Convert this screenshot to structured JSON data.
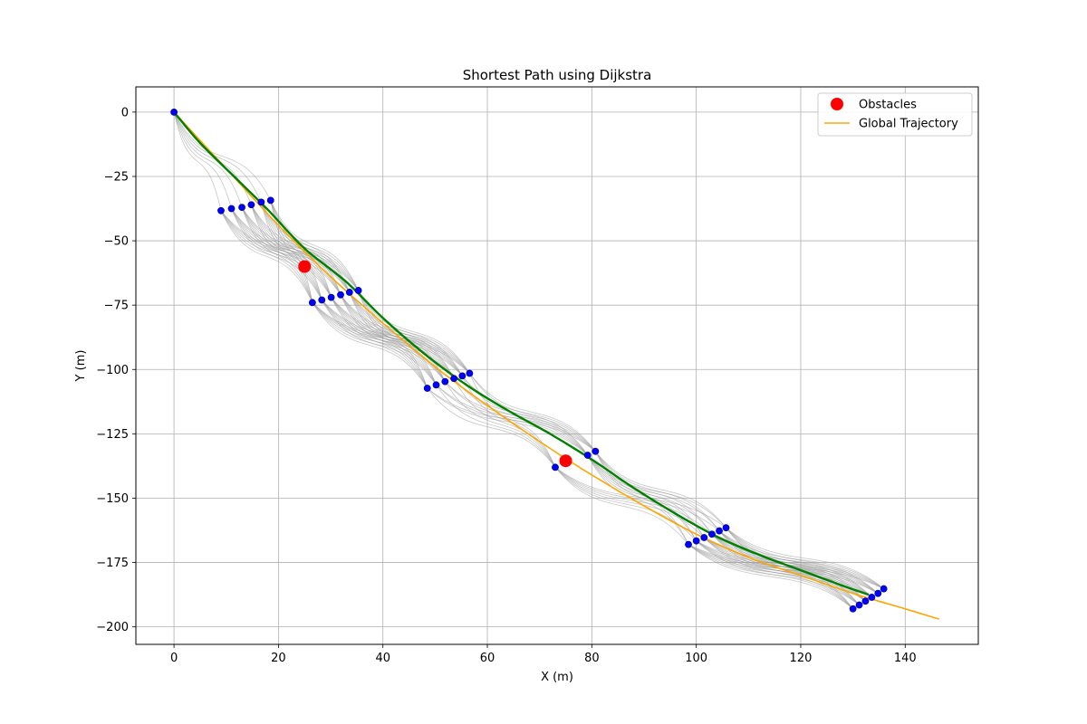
{
  "chart_data": {
    "type": "line",
    "title": "Shortest Path using Dijkstra",
    "xlabel": "X (m)",
    "ylabel": "Y (m)",
    "xlim": [
      -7.3,
      154
    ],
    "ylim": [
      -206.8,
      9.8
    ],
    "xticks": [
      0,
      20,
      40,
      60,
      80,
      100,
      120,
      140
    ],
    "yticks": [
      0,
      -25,
      -50,
      -75,
      -100,
      -125,
      -150,
      -175,
      -200
    ],
    "grid": true,
    "legend": {
      "position": "top-right",
      "entries": [
        {
          "label": "Obstacles",
          "marker": "circle",
          "color": "#ff0000"
        },
        {
          "label": "Global Trajectory",
          "marker": "line",
          "color": "#ffa500"
        }
      ]
    },
    "obstacles": {
      "name": "Obstacles",
      "color": "#ff0000",
      "points": [
        [
          25,
          -60
        ],
        [
          75,
          -135.5
        ]
      ]
    },
    "global_trajectory": {
      "name": "Global Trajectory",
      "color": "#ffa500",
      "points": [
        [
          0,
          0
        ],
        [
          10,
          -22
        ],
        [
          20,
          -44
        ],
        [
          30,
          -64
        ],
        [
          40,
          -82
        ],
        [
          50,
          -99
        ],
        [
          60,
          -114
        ],
        [
          70,
          -128
        ],
        [
          80,
          -141
        ],
        [
          90,
          -153
        ],
        [
          100,
          -164
        ],
        [
          110,
          -173
        ],
        [
          120,
          -180
        ],
        [
          130,
          -187
        ],
        [
          140,
          -193
        ],
        [
          146.5,
          -197
        ]
      ]
    },
    "shortest_path": {
      "color": "#008000",
      "points": [
        [
          0,
          0
        ],
        [
          5,
          -12
        ],
        [
          12,
          -26
        ],
        [
          18,
          -38
        ],
        [
          25,
          -53
        ],
        [
          33,
          -66
        ],
        [
          40,
          -80
        ],
        [
          48,
          -94
        ],
        [
          56,
          -106
        ],
        [
          64,
          -116
        ],
        [
          72,
          -125
        ],
        [
          80,
          -135
        ],
        [
          88,
          -146
        ],
        [
          96,
          -156
        ],
        [
          104,
          -165
        ],
        [
          112,
          -172
        ],
        [
          120,
          -178
        ],
        [
          128,
          -184
        ],
        [
          133,
          -187.5
        ]
      ]
    },
    "waypoints": {
      "color": "#0000ff",
      "layers": [
        [
          [
            0,
            0
          ]
        ],
        [
          [
            9,
            -38.3
          ],
          [
            11,
            -37.5
          ],
          [
            13,
            -37
          ],
          [
            14.8,
            -36
          ],
          [
            16.7,
            -35
          ],
          [
            18.5,
            -34.3
          ]
        ],
        [
          [
            26.5,
            -74
          ],
          [
            28.3,
            -73
          ],
          [
            30.1,
            -72
          ],
          [
            31.9,
            -71
          ],
          [
            33.6,
            -70
          ],
          [
            35.3,
            -69.3
          ]
        ],
        [
          [
            48.5,
            -107.3
          ],
          [
            50.2,
            -106
          ],
          [
            51.9,
            -104.7
          ],
          [
            53.6,
            -103.5
          ],
          [
            55.2,
            -102.5
          ],
          [
            56.6,
            -101.5
          ]
        ],
        [
          [
            73,
            -138
          ],
          [
            79.2,
            -133.3
          ],
          [
            80.7,
            -131.8
          ]
        ],
        [
          [
            98.5,
            -168
          ],
          [
            100,
            -166.6
          ],
          [
            101.5,
            -165.3
          ],
          [
            103,
            -164
          ],
          [
            104.4,
            -162.7
          ],
          [
            105.7,
            -161.5
          ]
        ],
        [
          [
            130,
            -193
          ],
          [
            131.2,
            -191.5
          ],
          [
            132.4,
            -190
          ],
          [
            133.6,
            -188.5
          ],
          [
            134.8,
            -187
          ],
          [
            135.9,
            -185.2
          ]
        ]
      ]
    },
    "edge_color": "#999999"
  }
}
